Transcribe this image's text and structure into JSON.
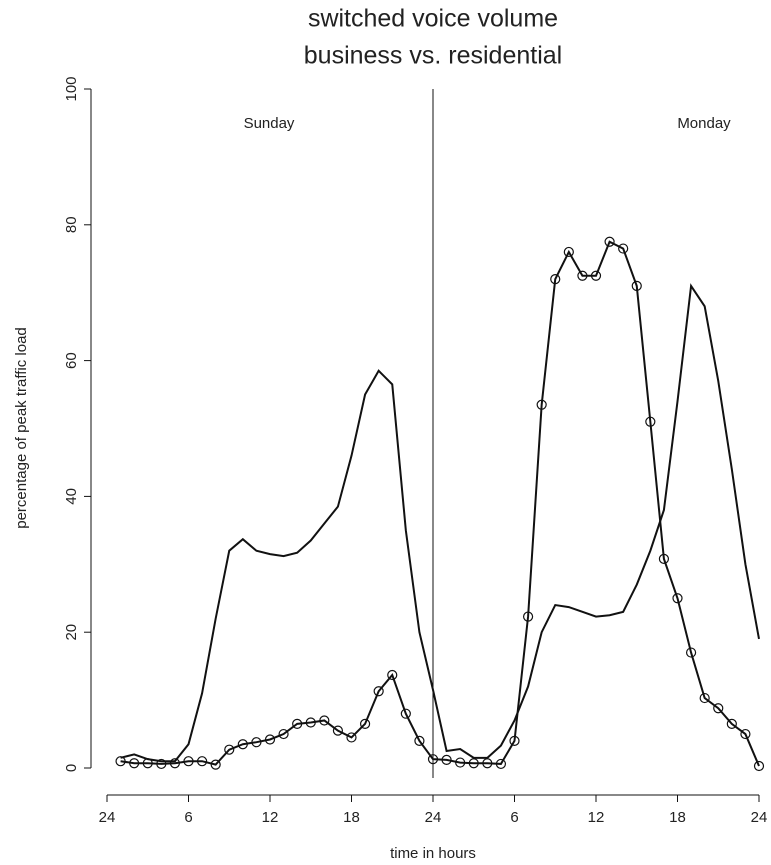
{
  "chart_data": {
    "type": "line",
    "title": [
      "switched voice volume",
      "business vs. residential"
    ],
    "xlabel": "time in hours",
    "ylabel": "percentage of peak traffic load",
    "annotations": [
      "Sunday",
      "Monday"
    ],
    "vline": 24,
    "x": [
      1,
      2,
      3,
      4,
      5,
      6,
      7,
      8,
      9,
      10,
      11,
      12,
      13,
      14,
      15,
      16,
      17,
      18,
      19,
      20,
      21,
      22,
      23,
      24,
      25,
      26,
      27,
      28,
      29,
      30,
      31,
      32,
      33,
      34,
      35,
      36,
      37,
      38,
      39,
      40,
      41,
      42,
      43,
      44,
      45,
      46,
      47,
      48
    ],
    "series": [
      {
        "color": "#111111",
        "marker": "none",
        "values": [
          1.5,
          2,
          1.3,
          1,
          1,
          3.5,
          11,
          22,
          32,
          33.7,
          32,
          31.5,
          31.2,
          31.7,
          33.5,
          36,
          38.5,
          46,
          55,
          58.5,
          56.5,
          35,
          20,
          11.5,
          2.5,
          2.8,
          1.5,
          1.5,
          3.3,
          7,
          12,
          20,
          24,
          23.7,
          23,
          22.3,
          22.5,
          23,
          27,
          32,
          38,
          54,
          71,
          68,
          57,
          44,
          30,
          19
        ]
      },
      {
        "color": "#111111",
        "marker": "circle",
        "values": [
          1,
          0.7,
          0.7,
          0.6,
          0.7,
          1,
          1,
          0.5,
          2.7,
          3.5,
          3.8,
          4.2,
          5,
          6.5,
          6.7,
          7,
          5.5,
          4.5,
          6.5,
          11.3,
          13.7,
          8,
          4,
          1.3,
          1.2,
          0.8,
          0.7,
          0.7,
          0.6,
          4,
          22.3,
          53.5,
          72,
          76,
          72.5,
          72.5,
          77.5,
          76.5,
          71,
          51,
          30.8,
          25,
          17,
          10.3,
          8.8,
          6.5,
          5,
          0.3
        ]
      }
    ],
    "xlim": [
      0,
      48
    ],
    "ylim": [
      0,
      100
    ],
    "xticks": [
      {
        "value": 0,
        "label": "24"
      },
      6,
      12,
      18,
      24,
      {
        "value": 30,
        "label": "6"
      },
      {
        "value": 36,
        "label": "12"
      },
      {
        "value": 42,
        "label": "18"
      },
      {
        "value": 48,
        "label": "24"
      }
    ],
    "yticks": [
      0,
      20,
      40,
      60,
      80,
      100
    ]
  }
}
